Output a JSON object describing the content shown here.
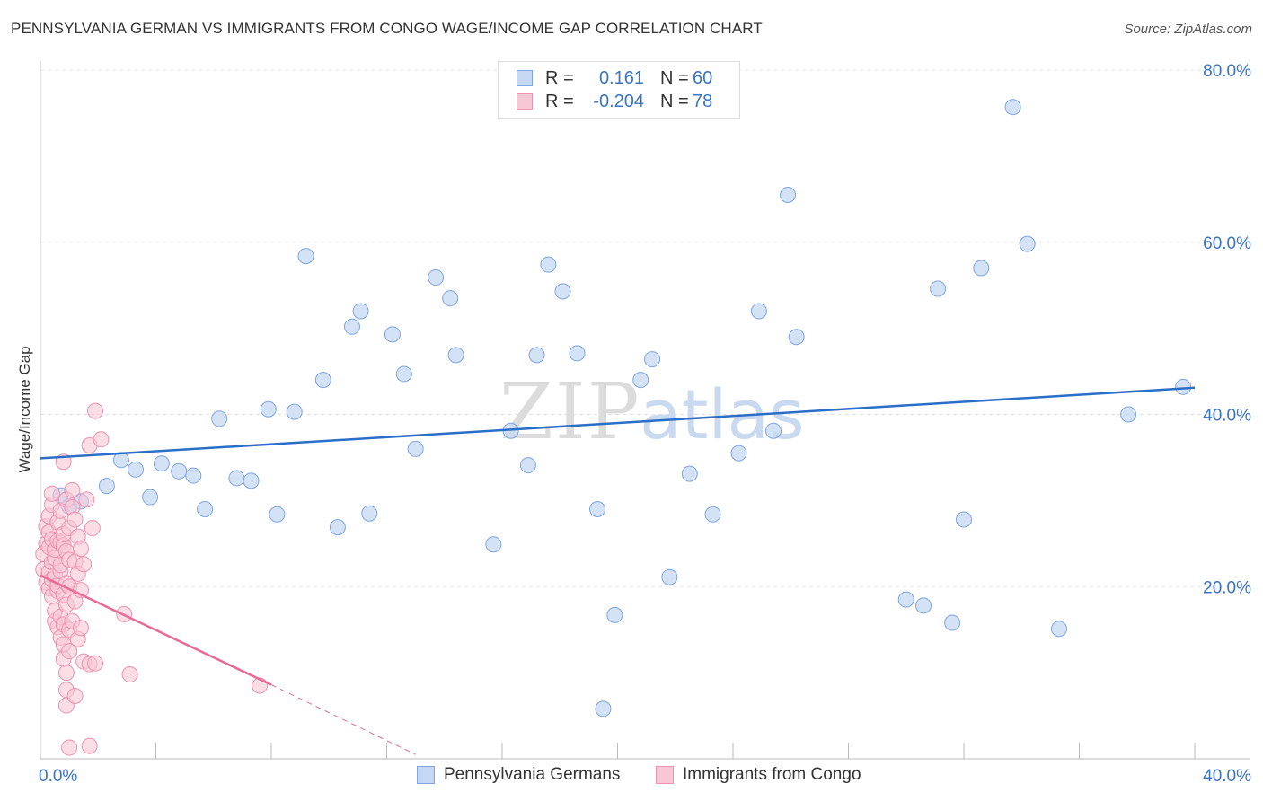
{
  "header": {
    "title": "PENNSYLVANIA GERMAN VS IMMIGRANTS FROM CONGO WAGE/INCOME GAP CORRELATION CHART",
    "source": "Source: ZipAtlas.com"
  },
  "watermark": {
    "zip": "ZIP",
    "atlas": "atlas"
  },
  "legend_top": {
    "rows": [
      {
        "r_label": "R =",
        "r_value": "0.161",
        "n_label": "N =",
        "n_value": "60"
      },
      {
        "r_label": "R =",
        "r_value": "-0.204",
        "n_label": "N =",
        "n_value": "78"
      }
    ]
  },
  "legend_bottom": {
    "items": [
      {
        "label": "Pennsylvania Germans"
      },
      {
        "label": "Immigrants from Congo"
      }
    ]
  },
  "colors": {
    "blue_fill": "#c5d8f3",
    "blue_stroke": "#7fa6df",
    "blue_line": "#2b6ec8",
    "pink_fill": "#f8c7d6",
    "pink_stroke": "#ec93b0",
    "pink_line": "#e76b95",
    "tick_label": "#3a74c4",
    "grid": "#e3e3e3"
  },
  "chart_data": {
    "type": "scatter",
    "title": "PENNSYLVANIA GERMAN VS IMMIGRANTS FROM CONGO WAGE/INCOME GAP CORRELATION CHART",
    "xlabel": "",
    "ylabel": "Wage/Income Gap",
    "xlim": [
      0,
      40
    ],
    "ylim": [
      0,
      80
    ],
    "x_tick_labels": [
      {
        "value": 0,
        "label": "0.0%"
      },
      {
        "value": 40,
        "label": "40.0%"
      }
    ],
    "y_tick_labels": [
      {
        "value": 20,
        "label": "20.0%"
      },
      {
        "value": 40,
        "label": "40.0%"
      },
      {
        "value": 60,
        "label": "60.0%"
      },
      {
        "value": 80,
        "label": "80.0%"
      }
    ],
    "grid": true,
    "legend_position": "bottom",
    "series": [
      {
        "name": "Pennsylvania Germans",
        "color": "#7fa6df",
        "points": [
          [
            0.7,
            30.6
          ],
          [
            1.0,
            29.3
          ],
          [
            1.4,
            29.9
          ],
          [
            2.3,
            31.7
          ],
          [
            2.8,
            34.7
          ],
          [
            3.3,
            33.6
          ],
          [
            3.8,
            30.4
          ],
          [
            4.2,
            34.3
          ],
          [
            4.8,
            33.4
          ],
          [
            5.3,
            32.9
          ],
          [
            5.7,
            29.0
          ],
          [
            6.2,
            39.5
          ],
          [
            6.8,
            32.6
          ],
          [
            7.3,
            32.3
          ],
          [
            7.9,
            40.6
          ],
          [
            8.2,
            28.4
          ],
          [
            8.8,
            40.3
          ],
          [
            9.2,
            58.4
          ],
          [
            9.8,
            44.0
          ],
          [
            10.3,
            26.9
          ],
          [
            10.8,
            50.2
          ],
          [
            11.1,
            52.0
          ],
          [
            11.4,
            28.5
          ],
          [
            12.2,
            49.3
          ],
          [
            12.6,
            44.7
          ],
          [
            13.0,
            36.0
          ],
          [
            13.7,
            55.9
          ],
          [
            14.2,
            53.5
          ],
          [
            14.4,
            46.9
          ],
          [
            15.7,
            24.9
          ],
          [
            16.3,
            38.1
          ],
          [
            16.9,
            34.1
          ],
          [
            17.2,
            46.9
          ],
          [
            17.6,
            57.4
          ],
          [
            18.1,
            54.3
          ],
          [
            18.6,
            47.1
          ],
          [
            19.5,
            5.8
          ],
          [
            19.9,
            16.7
          ],
          [
            20.8,
            44.0
          ],
          [
            21.2,
            46.4
          ],
          [
            21.8,
            21.1
          ],
          [
            22.5,
            33.1
          ],
          [
            23.3,
            28.4
          ],
          [
            24.2,
            35.5
          ],
          [
            24.9,
            52.0
          ],
          [
            25.4,
            38.1
          ],
          [
            25.9,
            65.5
          ],
          [
            26.2,
            49.0
          ],
          [
            30.0,
            18.5
          ],
          [
            30.6,
            17.8
          ],
          [
            31.1,
            54.6
          ],
          [
            31.6,
            15.8
          ],
          [
            32.0,
            27.8
          ],
          [
            32.6,
            57.0
          ],
          [
            33.7,
            75.7
          ],
          [
            34.2,
            59.8
          ],
          [
            35.3,
            15.1
          ],
          [
            37.7,
            40.0
          ],
          [
            39.6,
            43.2
          ],
          [
            19.3,
            29.0
          ]
        ]
      },
      {
        "name": "Immigrants from Congo",
        "color": "#ec93b0",
        "points": [
          [
            0.1,
            23.8
          ],
          [
            0.1,
            22.0
          ],
          [
            0.2,
            20.5
          ],
          [
            0.2,
            25.0
          ],
          [
            0.2,
            27.0
          ],
          [
            0.3,
            19.8
          ],
          [
            0.3,
            21.7
          ],
          [
            0.3,
            24.6
          ],
          [
            0.3,
            26.3
          ],
          [
            0.3,
            28.2
          ],
          [
            0.4,
            18.9
          ],
          [
            0.4,
            20.8
          ],
          [
            0.4,
            22.8
          ],
          [
            0.4,
            25.5
          ],
          [
            0.4,
            29.5
          ],
          [
            0.4,
            30.8
          ],
          [
            0.5,
            16.0
          ],
          [
            0.5,
            17.2
          ],
          [
            0.5,
            21.3
          ],
          [
            0.5,
            23.3
          ],
          [
            0.5,
            24.3
          ],
          [
            0.6,
            15.3
          ],
          [
            0.6,
            19.5
          ],
          [
            0.6,
            20.1
          ],
          [
            0.6,
            25.3
          ],
          [
            0.6,
            27.5
          ],
          [
            0.7,
            14.1
          ],
          [
            0.7,
            16.5
          ],
          [
            0.7,
            21.8
          ],
          [
            0.7,
            22.5
          ],
          [
            0.7,
            25.1
          ],
          [
            0.7,
            28.8
          ],
          [
            0.8,
            11.6
          ],
          [
            0.8,
            13.3
          ],
          [
            0.8,
            15.6
          ],
          [
            0.8,
            19.1
          ],
          [
            0.8,
            24.8
          ],
          [
            0.8,
            26.1
          ],
          [
            0.8,
            34.5
          ],
          [
            0.9,
            6.2
          ],
          [
            0.9,
            8.0
          ],
          [
            0.9,
            10.0
          ],
          [
            0.9,
            17.9
          ],
          [
            0.9,
            20.4
          ],
          [
            0.9,
            24.1
          ],
          [
            0.9,
            30.1
          ],
          [
            1.0,
            1.3
          ],
          [
            1.0,
            12.5
          ],
          [
            1.0,
            15.0
          ],
          [
            1.0,
            20.0
          ],
          [
            1.0,
            23.1
          ],
          [
            1.0,
            26.8
          ],
          [
            1.1,
            16.0
          ],
          [
            1.1,
            29.2
          ],
          [
            1.1,
            31.2
          ],
          [
            1.2,
            7.3
          ],
          [
            1.2,
            18.3
          ],
          [
            1.2,
            22.9
          ],
          [
            1.2,
            27.8
          ],
          [
            1.3,
            13.9
          ],
          [
            1.3,
            21.5
          ],
          [
            1.3,
            25.8
          ],
          [
            1.4,
            15.2
          ],
          [
            1.4,
            19.6
          ],
          [
            1.4,
            24.4
          ],
          [
            1.5,
            11.3
          ],
          [
            1.5,
            22.6
          ],
          [
            1.6,
            30.1
          ],
          [
            1.7,
            11.0
          ],
          [
            1.7,
            1.5
          ],
          [
            1.7,
            36.4
          ],
          [
            1.8,
            26.8
          ],
          [
            1.9,
            40.4
          ],
          [
            1.9,
            11.1
          ],
          [
            2.1,
            37.1
          ],
          [
            2.9,
            16.8
          ],
          [
            3.1,
            9.8
          ],
          [
            7.6,
            8.5
          ]
        ]
      }
    ],
    "trendlines": [
      {
        "series": "Pennsylvania Germans",
        "x": [
          0,
          40
        ],
        "y": [
          34.9,
          43.1
        ],
        "style": "solid"
      },
      {
        "series": "Immigrants from Congo",
        "x": [
          0,
          8.0
        ],
        "y": [
          21.3,
          8.6
        ],
        "style": "solid"
      },
      {
        "series": "Immigrants from Congo",
        "x": [
          8.0,
          13.0
        ],
        "y": [
          8.6,
          0.5
        ],
        "style": "dashed"
      }
    ]
  }
}
